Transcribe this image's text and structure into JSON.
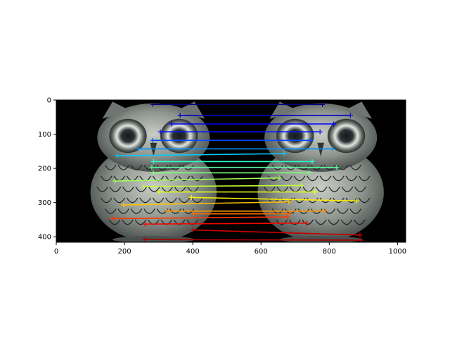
{
  "chart_data": {
    "type": "line",
    "title": "",
    "xlabel": "",
    "ylabel": "",
    "xlim": [
      0,
      1024
    ],
    "ylim": [
      416,
      0
    ],
    "xticks": [
      0,
      200,
      400,
      600,
      800,
      1000
    ],
    "yticks": [
      0,
      100,
      200,
      300,
      400
    ],
    "background_image": "two-owl-figurines-side-by-side-black-background",
    "image_extent": {
      "x": [
        0,
        1024
      ],
      "y": [
        0,
        416
      ]
    },
    "marker": "+",
    "colormap": "jet",
    "series": [
      {
        "color": "#00007f",
        "x": [
          283,
          780
        ],
        "y": [
          13,
          13
        ]
      },
      {
        "color": "#0000c8",
        "x": [
          363,
          862
        ],
        "y": [
          45,
          45
        ]
      },
      {
        "color": "#0000ff",
        "x": [
          338,
          813
        ],
        "y": [
          70,
          70
        ]
      },
      {
        "color": "#0010ff",
        "x": [
          305,
          773
        ],
        "y": [
          93,
          93
        ]
      },
      {
        "color": "#0048ff",
        "x": [
          283,
          745
        ],
        "y": [
          118,
          118
        ]
      },
      {
        "color": "#0090ff",
        "x": [
          240,
          810
        ],
        "y": [
          143,
          143
        ]
      },
      {
        "color": "#00ccff",
        "x": [
          178,
          668
        ],
        "y": [
          163,
          157
        ]
      },
      {
        "color": "#29ffce",
        "x": [
          285,
          750
        ],
        "y": [
          180,
          180
        ]
      },
      {
        "color": "#5cffa0",
        "x": [
          280,
          822
        ],
        "y": [
          197,
          197
        ]
      },
      {
        "color": "#7dff7a",
        "x": [
          285,
          742
        ],
        "y": [
          213,
          213
        ]
      },
      {
        "color": "#a0ff57",
        "x": [
          172,
          653
        ],
        "y": [
          237,
          228
        ]
      },
      {
        "color": "#c1ff36",
        "x": [
          257,
          718
        ],
        "y": [
          253,
          250
        ]
      },
      {
        "color": "#e4ff13",
        "x": [
          301,
          758
        ],
        "y": [
          269,
          269
        ]
      },
      {
        "color": "#fff000",
        "x": [
          396,
          880
        ],
        "y": [
          285,
          295
        ]
      },
      {
        "color": "#ffc400",
        "x": [
          197,
          682
        ],
        "y": [
          307,
          298
        ]
      },
      {
        "color": "#ff9400",
        "x": [
          324,
          785
        ],
        "y": [
          325,
          325
        ]
      },
      {
        "color": "#ff6800",
        "x": [
          402,
          683
        ],
        "y": [
          333,
          333
        ]
      },
      {
        "color": "#ff3800",
        "x": [
          164,
          677
        ],
        "y": [
          347,
          342
        ]
      },
      {
        "color": "#f10800",
        "x": [
          260,
          733
        ],
        "y": [
          363,
          360
        ]
      },
      {
        "color": "#c80000",
        "x": [
          400,
          890
        ],
        "y": [
          380,
          395
        ]
      },
      {
        "color": "#a40000",
        "x": [
          260,
          895
        ],
        "y": [
          408,
          410
        ]
      }
    ]
  }
}
